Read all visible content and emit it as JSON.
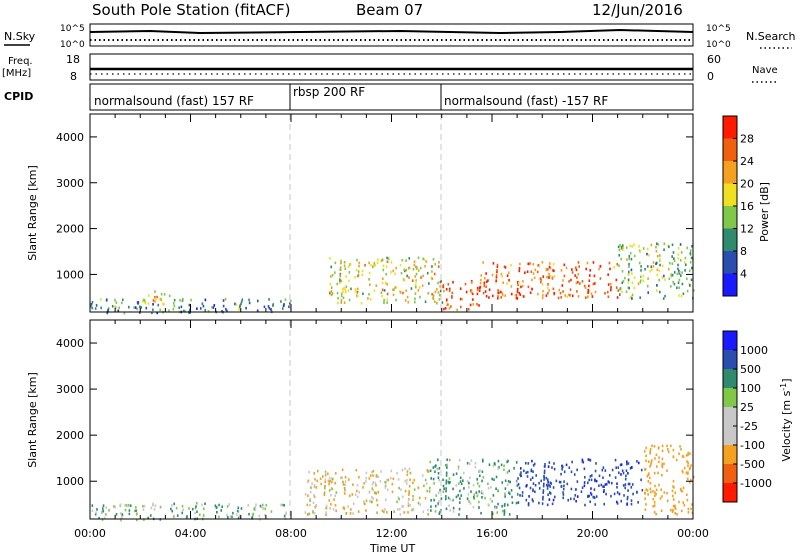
{
  "header": {
    "station": "South Pole Station (fitACF)",
    "beam": "Beam 07",
    "date": "12/Jun/2016"
  },
  "panels": {
    "nsky_label": "N.Sky",
    "nsky_top": "10^5",
    "nsky_bottom": "10^0",
    "nsearch_label": "N.Search",
    "nsearch_top": "10^5",
    "nsearch_bottom": "10^0",
    "freq_label_1": "Freq.",
    "freq_label_2": "[MHz]",
    "freq_top": "18",
    "freq_bottom": "8",
    "nave_label": "Nave",
    "nave_top": "60",
    "nave_bottom": "0",
    "cpid_label": "CPID",
    "cpid_segments": [
      "normalsound (fast) 157 RF",
      "rbsp 200 RF",
      "normalsound (fast) -157 RF"
    ]
  },
  "colors": {
    "power": [
      "#1a1aff",
      "#2a4db0",
      "#2f8a6e",
      "#7fc84a",
      "#f0e020",
      "#f5a020",
      "#f06010",
      "#ff1a00"
    ],
    "velocity": [
      "#ff1a00",
      "#f06010",
      "#f5a020",
      "#c8c8c8",
      "#c8c8c8",
      "#7fc84a",
      "#2f8a6e",
      "#2a4db0",
      "#1a1aff"
    ],
    "divider_line": "#c8c8c8"
  },
  "chart_data": [
    {
      "type": "heatmap",
      "name": "power",
      "xlabel": "",
      "ylabel": "Slant Range [km]",
      "xlim": [
        0,
        24
      ],
      "ylim": [
        180,
        4500
      ],
      "y_ticks": [
        "1000",
        "2000",
        "3000",
        "4000"
      ],
      "y_tick_values": [
        1000,
        2000,
        3000,
        4000
      ],
      "x_tick_values": [
        0,
        4,
        8,
        12,
        16,
        20,
        24
      ],
      "colorbar": {
        "label": "Power [dB]",
        "ticks": [
          "4",
          "8",
          "12",
          "16",
          "20",
          "24",
          "28"
        ],
        "tick_values": [
          4,
          8,
          12,
          16,
          20,
          24,
          28
        ],
        "range": [
          0,
          32
        ]
      },
      "echo_regions": [
        {
          "t_start": 0.0,
          "t_end": 8.0,
          "r_low": 180,
          "r_high": 500,
          "level_dB": 10
        },
        {
          "t_start": 2.0,
          "t_end": 3.2,
          "r_low": 350,
          "r_high": 700,
          "level_dB": 20
        },
        {
          "t_start": 9.5,
          "t_end": 14.0,
          "r_low": 400,
          "r_high": 1400,
          "level_dB": 18
        },
        {
          "t_start": 14.0,
          "t_end": 15.5,
          "r_low": 250,
          "r_high": 900,
          "level_dB": 28
        },
        {
          "t_start": 15.5,
          "t_end": 21.0,
          "r_low": 500,
          "r_high": 1300,
          "level_dB": 26
        },
        {
          "t_start": 21.0,
          "t_end": 24.0,
          "r_low": 500,
          "r_high": 1700,
          "level_dB": 14
        }
      ]
    },
    {
      "type": "heatmap",
      "name": "velocity",
      "xlabel": "Time UT",
      "ylabel": "Slant Range [km]",
      "xlim": [
        0,
        24
      ],
      "ylim": [
        180,
        4500
      ],
      "x_ticks": [
        "00:00",
        "04:00",
        "08:00",
        "12:00",
        "16:00",
        "20:00",
        "00:00"
      ],
      "x_tick_values": [
        0,
        4,
        8,
        12,
        16,
        20,
        24
      ],
      "y_ticks": [
        "1000",
        "2000",
        "3000",
        "4000"
      ],
      "y_tick_values": [
        1000,
        2000,
        3000,
        4000
      ],
      "colorbar": {
        "label": "Velocity [m s^-1]",
        "ticks": [
          "-1000",
          "-500",
          "-100",
          "-25",
          "25",
          "100",
          "500",
          "1000"
        ]
      },
      "echo_regions": [
        {
          "t_start": 0.0,
          "t_end": 8.0,
          "r_low": 180,
          "r_high": 550,
          "level_ms": 50
        },
        {
          "t_start": 8.5,
          "t_end": 13.5,
          "r_low": 300,
          "r_high": 1300,
          "level_ms": -80
        },
        {
          "t_start": 13.5,
          "t_end": 17.0,
          "r_low": 300,
          "r_high": 1500,
          "level_ms": 120
        },
        {
          "t_start": 17.0,
          "t_end": 22.0,
          "r_low": 500,
          "r_high": 1500,
          "level_ms": 900
        },
        {
          "t_start": 22.0,
          "t_end": 24.0,
          "r_low": 300,
          "r_high": 1800,
          "level_ms": -300
        }
      ]
    }
  ]
}
